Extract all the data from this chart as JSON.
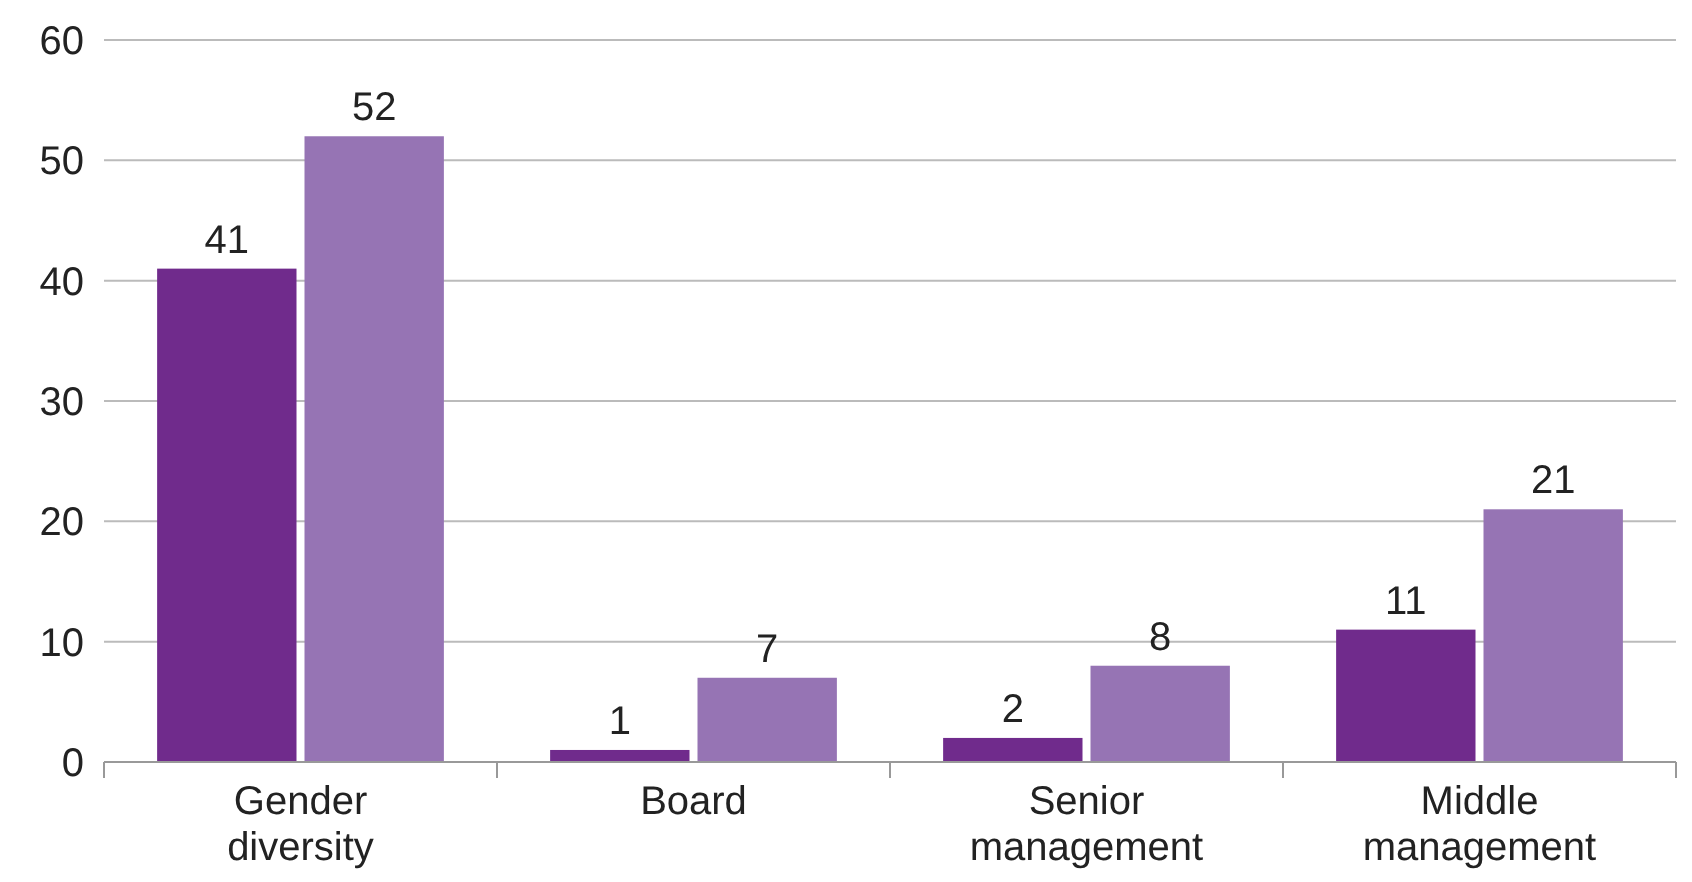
{
  "chart_data": {
    "type": "bar",
    "categories": [
      "Gender diversity",
      "Board",
      "Senior management",
      "Middle management"
    ],
    "series": [
      {
        "color": "#702b8c",
        "values": [
          41,
          1,
          2,
          11
        ]
      },
      {
        "color": "#9674b4",
        "values": [
          52,
          7,
          8,
          21
        ]
      }
    ],
    "ylim": [
      0,
      60
    ],
    "yticks": [
      0,
      10,
      20,
      30,
      40,
      50,
      60
    ],
    "grid": "y",
    "data_labels": true
  }
}
